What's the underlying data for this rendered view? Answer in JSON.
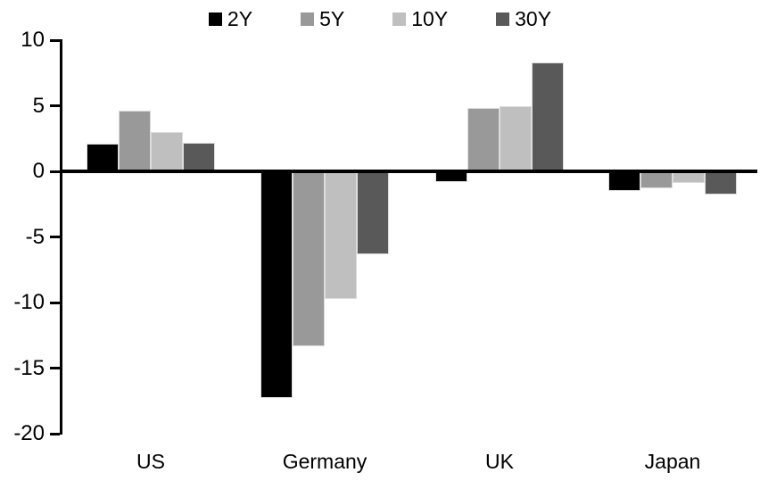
{
  "chart_data": {
    "type": "bar",
    "title": "",
    "xlabel": "",
    "ylabel": "",
    "categories": [
      "US",
      "Germany",
      "UK",
      "Japan"
    ],
    "series": [
      {
        "name": "2Y",
        "color": "#000000",
        "values": [
          2.1,
          -17.3,
          -0.8,
          -1.5
        ]
      },
      {
        "name": "5Y",
        "color": "#999999",
        "values": [
          4.6,
          -13.3,
          4.8,
          -1.3
        ]
      },
      {
        "name": "10Y",
        "color": "#bfbfbf",
        "values": [
          3.0,
          -9.7,
          5.0,
          -0.9
        ]
      },
      {
        "name": "30Y",
        "color": "#595959",
        "values": [
          2.2,
          -6.3,
          8.3,
          -1.8
        ]
      }
    ],
    "ylim": [
      -20,
      10
    ],
    "y_ticks": [
      10,
      5,
      0,
      -5,
      -10,
      -15,
      -20
    ],
    "grid": false,
    "legend_position": "top",
    "axis_color": "#000000"
  }
}
